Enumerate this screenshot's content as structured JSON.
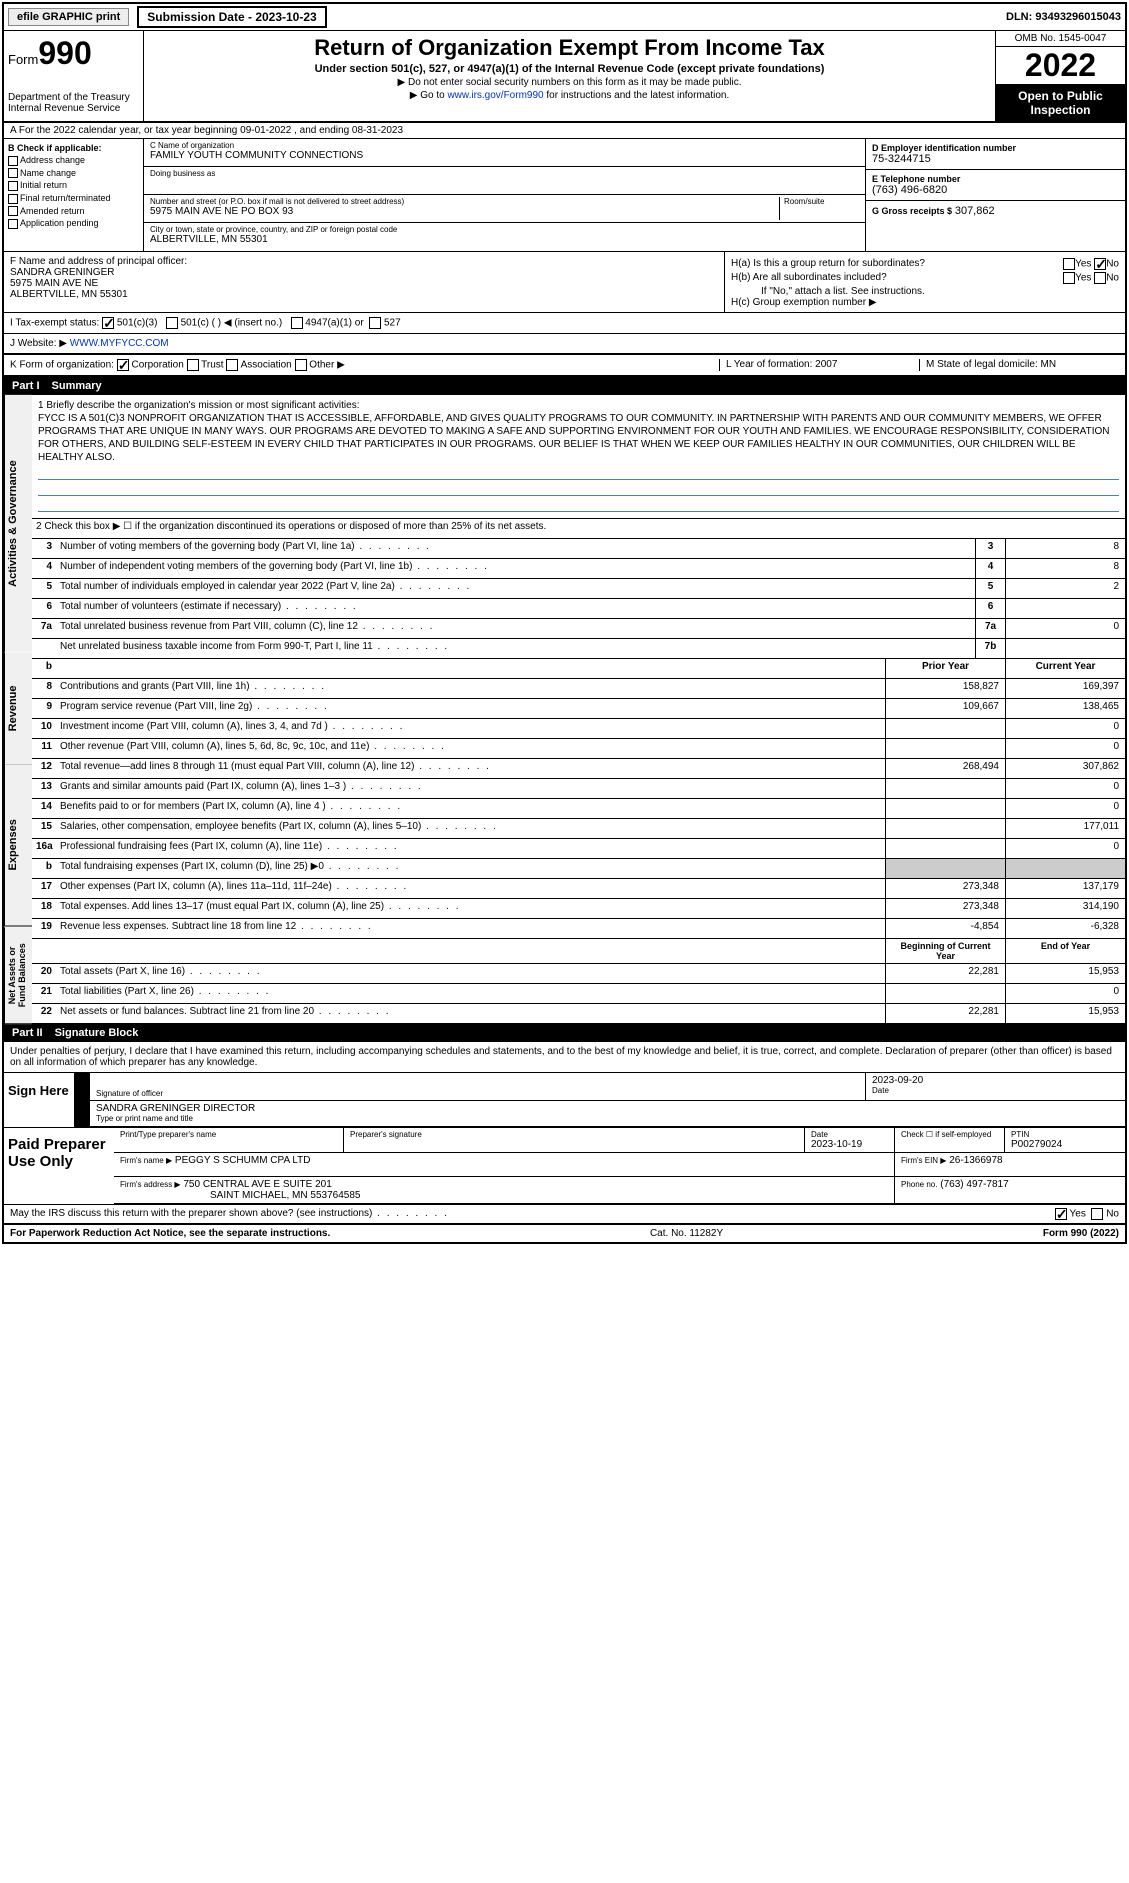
{
  "topbar": {
    "efile": "efile GRAPHIC print",
    "subdate_label": "Submission Date - 2023-10-23",
    "dln": "DLN: 93493296015043"
  },
  "header": {
    "form_prefix": "Form",
    "form_num": "990",
    "dept": "Department of the Treasury Internal Revenue Service",
    "title": "Return of Organization Exempt From Income Tax",
    "subtitle": "Under section 501(c), 527, or 4947(a)(1) of the Internal Revenue Code (except private foundations)",
    "note1": "▶ Do not enter social security numbers on this form as it may be made public.",
    "note2_pre": "▶ Go to ",
    "note2_link": "www.irs.gov/Form990",
    "note2_post": " for instructions and the latest information.",
    "omb": "OMB No. 1545-0047",
    "year": "2022",
    "open": "Open to Public Inspection"
  },
  "row_a": "A For the 2022 calendar year, or tax year beginning 09-01-2022   , and ending 08-31-2023",
  "col_b": {
    "hdr": "B Check if applicable:",
    "items": [
      "Address change",
      "Name change",
      "Initial return",
      "Final return/terminated",
      "Amended return",
      "Application pending"
    ]
  },
  "col_c": {
    "name_label": "C Name of organization",
    "name": "FAMILY YOUTH COMMUNITY CONNECTIONS",
    "dba_label": "Doing business as",
    "dba": "",
    "addr_label": "Number and street (or P.O. box if mail is not delivered to street address)",
    "room_label": "Room/suite",
    "addr": "5975 MAIN AVE NE PO BOX 93",
    "city_label": "City or town, state or province, country, and ZIP or foreign postal code",
    "city": "ALBERTVILLE, MN  55301"
  },
  "col_de": {
    "d_label": "D Employer identification number",
    "d_val": "75-3244715",
    "e_label": "E Telephone number",
    "e_val": "(763) 496-6820",
    "g_label": "G Gross receipts $",
    "g_val": "307,862"
  },
  "f": {
    "label": "F  Name and address of principal officer:",
    "name": "SANDRA GRENINGER",
    "addr1": "5975 MAIN AVE NE",
    "addr2": "ALBERTVILLE, MN  55301"
  },
  "h": {
    "a": "H(a)  Is this a group return for subordinates?",
    "b": "H(b)  Are all subordinates included?",
    "b_note": "If \"No,\" attach a list. See instructions.",
    "c": "H(c)  Group exemption number ▶",
    "yes": "Yes",
    "no": "No"
  },
  "i": {
    "label": "I   Tax-exempt status:",
    "o1": "501(c)(3)",
    "o2": "501(c) (  ) ◀ (insert no.)",
    "o3": "4947(a)(1) or",
    "o4": "527"
  },
  "j": {
    "label": "J   Website: ▶",
    "val": "WWW.MYFYCC.COM"
  },
  "k": {
    "label": "K Form of organization:",
    "o1": "Corporation",
    "o2": "Trust",
    "o3": "Association",
    "o4": "Other ▶"
  },
  "l": {
    "label": "L Year of formation:",
    "val": "2007"
  },
  "m": {
    "label": "M State of legal domicile:",
    "val": "MN"
  },
  "part1": {
    "hdr_num": "Part I",
    "hdr_title": "Summary",
    "vtabs": [
      "Activities & Governance",
      "Revenue",
      "Expenses",
      "Net Assets or Fund Balances"
    ],
    "q1_label": "1   Briefly describe the organization's mission or most significant activities:",
    "mission": "FYCC IS A 501(C)3 NONPROFIT ORGANIZATION THAT IS ACCESSIBLE, AFFORDABLE, AND GIVES QUALITY PROGRAMS TO OUR COMMUNITY. IN PARTNERSHIP WITH PARENTS AND OUR COMMUNITY MEMBERS, WE OFFER PROGRAMS THAT ARE UNIQUE IN MANY WAYS. OUR PROGRAMS ARE DEVOTED TO MAKING A SAFE AND SUPPORTING ENVIRONMENT FOR OUR YOUTH AND FAMILIES. WE ENCOURAGE RESPONSIBILITY, CONSIDERATION FOR OTHERS, AND BUILDING SELF-ESTEEM IN EVERY CHILD THAT PARTICIPATES IN OUR PROGRAMS. OUR BELIEF IS THAT WHEN WE KEEP OUR FAMILIES HEALTHY IN OUR COMMUNITIES, OUR CHILDREN WILL BE HEALTHY ALSO.",
    "q2": "2   Check this box ▶ ☐ if the organization discontinued its operations or disposed of more than 25% of its net assets.",
    "rows_single": [
      {
        "n": "3",
        "t": "Number of voting members of the governing body (Part VI, line 1a)",
        "c": "3",
        "v": "8"
      },
      {
        "n": "4",
        "t": "Number of independent voting members of the governing body (Part VI, line 1b)",
        "c": "4",
        "v": "8"
      },
      {
        "n": "5",
        "t": "Total number of individuals employed in calendar year 2022 (Part V, line 2a)",
        "c": "5",
        "v": "2"
      },
      {
        "n": "6",
        "t": "Total number of volunteers (estimate if necessary)",
        "c": "6",
        "v": ""
      },
      {
        "n": "7a",
        "t": "Total unrelated business revenue from Part VIII, column (C), line 12",
        "c": "7a",
        "v": "0"
      },
      {
        "n": "",
        "t": "Net unrelated business taxable income from Form 990-T, Part I, line 11",
        "c": "7b",
        "v": ""
      }
    ],
    "col_hdrs": {
      "b": "b",
      "prior": "Prior Year",
      "curr": "Current Year"
    },
    "rows_rev": [
      {
        "n": "8",
        "t": "Contributions and grants (Part VIII, line 1h)",
        "p": "158,827",
        "c": "169,397"
      },
      {
        "n": "9",
        "t": "Program service revenue (Part VIII, line 2g)",
        "p": "109,667",
        "c": "138,465"
      },
      {
        "n": "10",
        "t": "Investment income (Part VIII, column (A), lines 3, 4, and 7d )",
        "p": "",
        "c": "0"
      },
      {
        "n": "11",
        "t": "Other revenue (Part VIII, column (A), lines 5, 6d, 8c, 9c, 10c, and 11e)",
        "p": "",
        "c": "0"
      },
      {
        "n": "12",
        "t": "Total revenue—add lines 8 through 11 (must equal Part VIII, column (A), line 12)",
        "p": "268,494",
        "c": "307,862"
      }
    ],
    "rows_exp": [
      {
        "n": "13",
        "t": "Grants and similar amounts paid (Part IX, column (A), lines 1–3 )",
        "p": "",
        "c": "0"
      },
      {
        "n": "14",
        "t": "Benefits paid to or for members (Part IX, column (A), line 4 )",
        "p": "",
        "c": "0"
      },
      {
        "n": "15",
        "t": "Salaries, other compensation, employee benefits (Part IX, column (A), lines 5–10)",
        "p": "",
        "c": "177,011"
      },
      {
        "n": "16a",
        "t": "Professional fundraising fees (Part IX, column (A), line 11e)",
        "p": "",
        "c": "0"
      },
      {
        "n": "b",
        "t": "Total fundraising expenses (Part IX, column (D), line 25) ▶0",
        "p": "shade",
        "c": "shade"
      },
      {
        "n": "17",
        "t": "Other expenses (Part IX, column (A), lines 11a–11d, 11f–24e)",
        "p": "273,348",
        "c": "137,179"
      },
      {
        "n": "18",
        "t": "Total expenses. Add lines 13–17 (must equal Part IX, column (A), line 25)",
        "p": "273,348",
        "c": "314,190"
      },
      {
        "n": "19",
        "t": "Revenue less expenses. Subtract line 18 from line 12",
        "p": "-4,854",
        "c": "-6,328"
      }
    ],
    "col_hdrs2": {
      "prior": "Beginning of Current Year",
      "curr": "End of Year"
    },
    "rows_net": [
      {
        "n": "20",
        "t": "Total assets (Part X, line 16)",
        "p": "22,281",
        "c": "15,953"
      },
      {
        "n": "21",
        "t": "Total liabilities (Part X, line 26)",
        "p": "",
        "c": "0"
      },
      {
        "n": "22",
        "t": "Net assets or fund balances. Subtract line 21 from line 20",
        "p": "22,281",
        "c": "15,953"
      }
    ]
  },
  "part2": {
    "hdr_num": "Part II",
    "hdr_title": "Signature Block",
    "intro": "Under penalties of perjury, I declare that I have examined this return, including accompanying schedules and statements, and to the best of my knowledge and belief, it is true, correct, and complete. Declaration of preparer (other than officer) is based on all information of which preparer has any knowledge.",
    "sign_here": "Sign Here",
    "sig_officer": "Signature of officer",
    "sig_date": "2023-09-20",
    "sig_date_label": "Date",
    "typed_name": "SANDRA GRENINGER DIRECTOR",
    "typed_label": "Type or print name and title",
    "paid": "Paid Preparer Use Only",
    "prep_name_label": "Print/Type preparer's name",
    "prep_sig_label": "Preparer's signature",
    "prep_date_label": "Date",
    "prep_date": "2023-10-19",
    "prep_check": "Check ☐ if self-employed",
    "ptin_label": "PTIN",
    "ptin": "P00279024",
    "firm_name_label": "Firm's name    ▶",
    "firm_name": "PEGGY S SCHUMM CPA LTD",
    "firm_ein_label": "Firm's EIN ▶",
    "firm_ein": "26-1366978",
    "firm_addr_label": "Firm's address ▶",
    "firm_addr1": "750 CENTRAL AVE E SUITE 201",
    "firm_addr2": "SAINT MICHAEL, MN  553764585",
    "phone_label": "Phone no.",
    "phone": "(763) 497-7817"
  },
  "bottom": {
    "discuss": "May the IRS discuss this return with the preparer shown above? (see instructions)",
    "yes": "Yes",
    "no": "No"
  },
  "footer": {
    "left": "For Paperwork Reduction Act Notice, see the separate instructions.",
    "mid": "Cat. No. 11282Y",
    "right": "Form 990 (2022)"
  }
}
